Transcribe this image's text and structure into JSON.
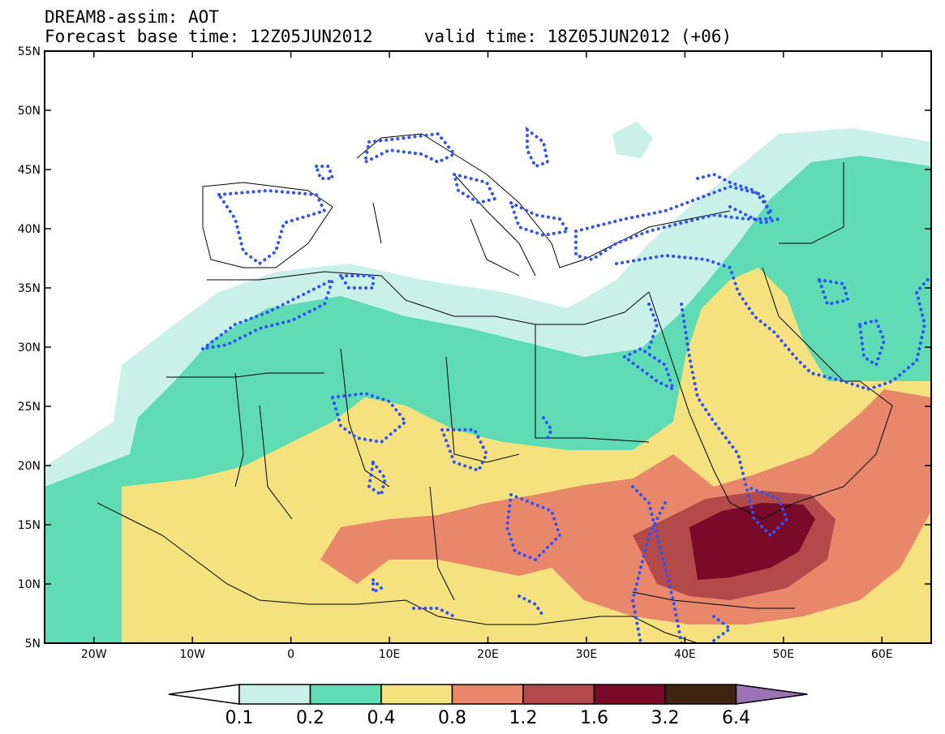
{
  "header": {
    "title": "DREAM8-assim: AOT",
    "forecast_label": "Forecast base time: 12Z05JUN2012",
    "valid_label": "valid time: 18Z05JUN2012 (+06)"
  },
  "map": {
    "lon_range": [
      -25,
      65
    ],
    "lat_range": [
      5,
      55
    ],
    "lon_ticks": [
      {
        "value": -20,
        "label": "20W"
      },
      {
        "value": -10,
        "label": "10W"
      },
      {
        "value": 0,
        "label": "0"
      },
      {
        "value": 10,
        "label": "10E"
      },
      {
        "value": 20,
        "label": "20E"
      },
      {
        "value": 30,
        "label": "30E"
      },
      {
        "value": 40,
        "label": "40E"
      },
      {
        "value": 50,
        "label": "50E"
      },
      {
        "value": 60,
        "label": "60E"
      }
    ],
    "lat_ticks": [
      {
        "value": 5,
        "label": "5N"
      },
      {
        "value": 10,
        "label": "10N"
      },
      {
        "value": 15,
        "label": "15N"
      },
      {
        "value": 20,
        "label": "20N"
      },
      {
        "value": 25,
        "label": "25N"
      },
      {
        "value": 30,
        "label": "30N"
      },
      {
        "value": 35,
        "label": "35N"
      },
      {
        "value": 40,
        "label": "40N"
      },
      {
        "value": 45,
        "label": "45N"
      },
      {
        "value": 50,
        "label": "50N"
      },
      {
        "value": 55,
        "label": "55N"
      }
    ],
    "contour_colors": [
      "#c9f1e8",
      "#5fdcb4",
      "#f5e27e",
      "#e9876a",
      "#b34a4a",
      "#7a0a2a",
      "#3d2412",
      "#9b72b6"
    ]
  },
  "colorbar": {
    "labels": [
      "0.1",
      "0.2",
      "0.4",
      "0.8",
      "1.2",
      "1.6",
      "3.2",
      "6.4"
    ],
    "colors": [
      "#c9f1e8",
      "#5fdcb4",
      "#f5e27e",
      "#e9876a",
      "#b34a4a",
      "#7a0a2a",
      "#3d2412",
      "#9b72b6"
    ]
  }
}
